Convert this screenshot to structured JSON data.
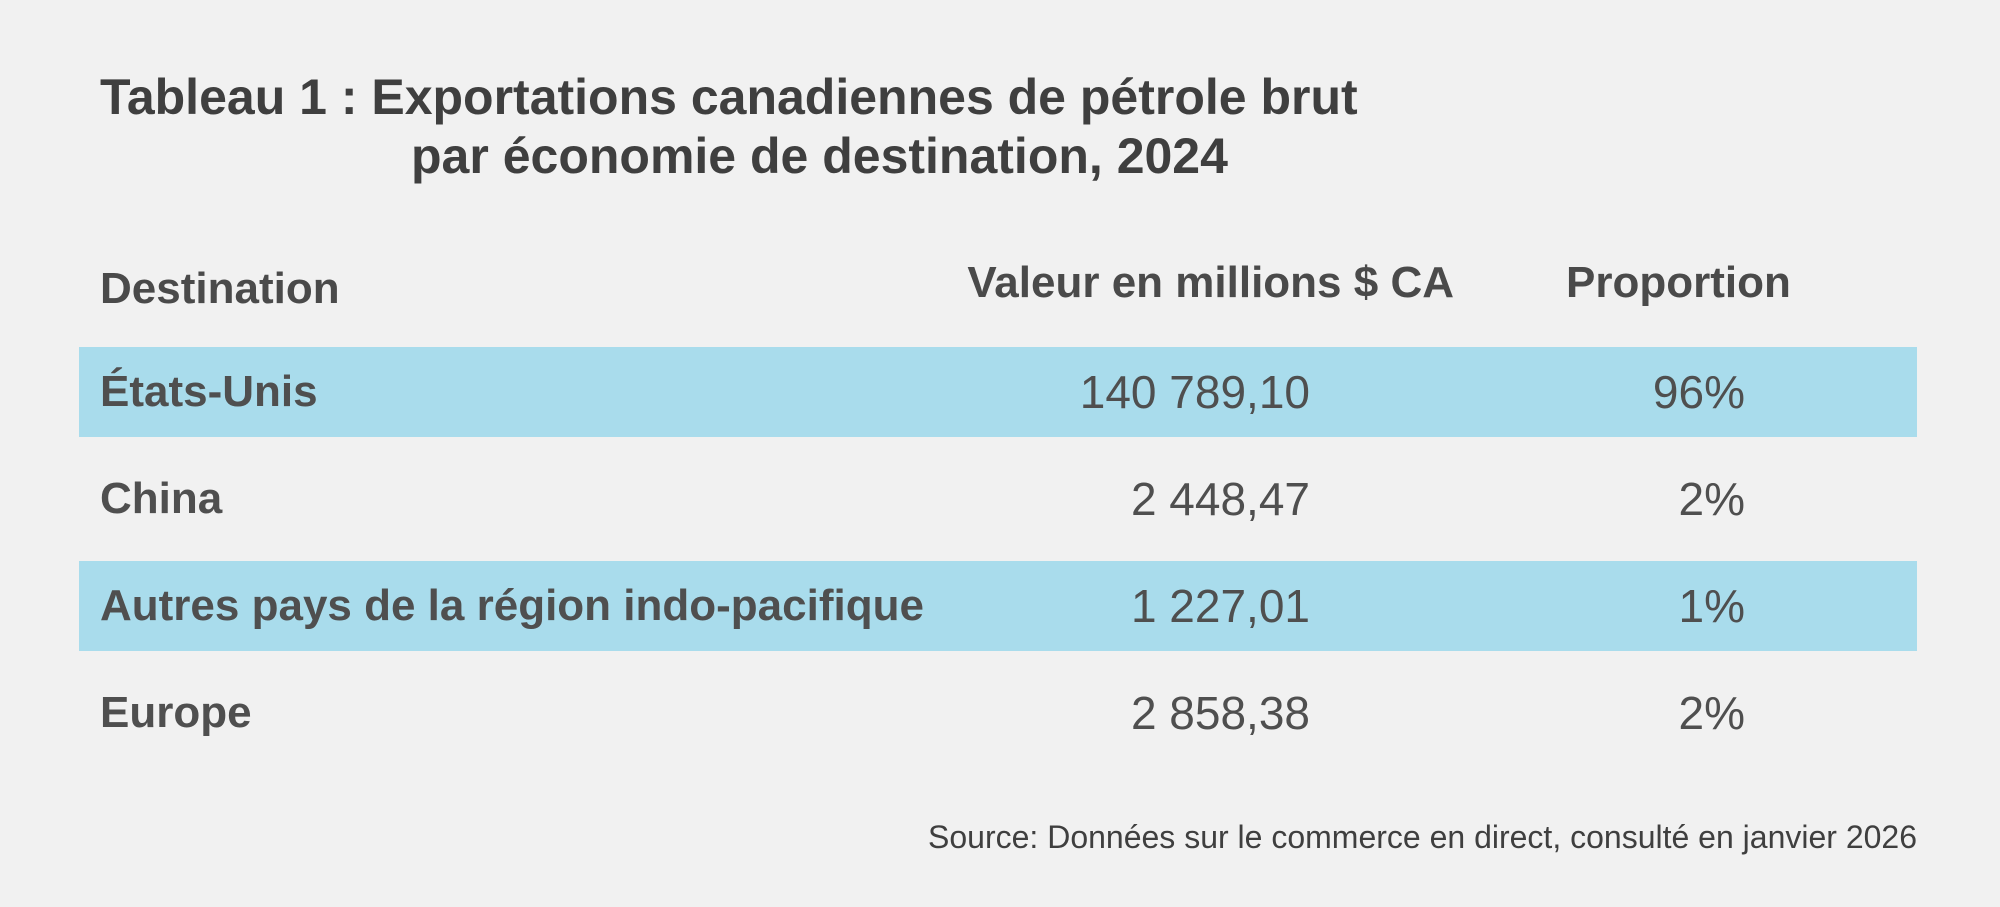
{
  "header": {
    "title": [
      "Tableau 1 : Exportations canadiennes de pétrole brut",
      "par économie de destination, 2024"
    ]
  },
  "table": {
    "columns": [
      "Destination",
      "Valeur en millions $ CA",
      "Proportion"
    ],
    "rows": [
      [
        "États-Unis",
        "140 789,10",
        "96%"
      ],
      [
        "China",
        "2 448,47",
        "2%"
      ],
      [
        "Autres pays de la région indo-pacifique",
        "1 227,01",
        "1%"
      ],
      [
        "Europe",
        "2 858,38",
        "2%"
      ]
    ]
  },
  "footer": {
    "source": "Source: Données sur le commerce en direct, consulté en janvier 2026"
  }
}
